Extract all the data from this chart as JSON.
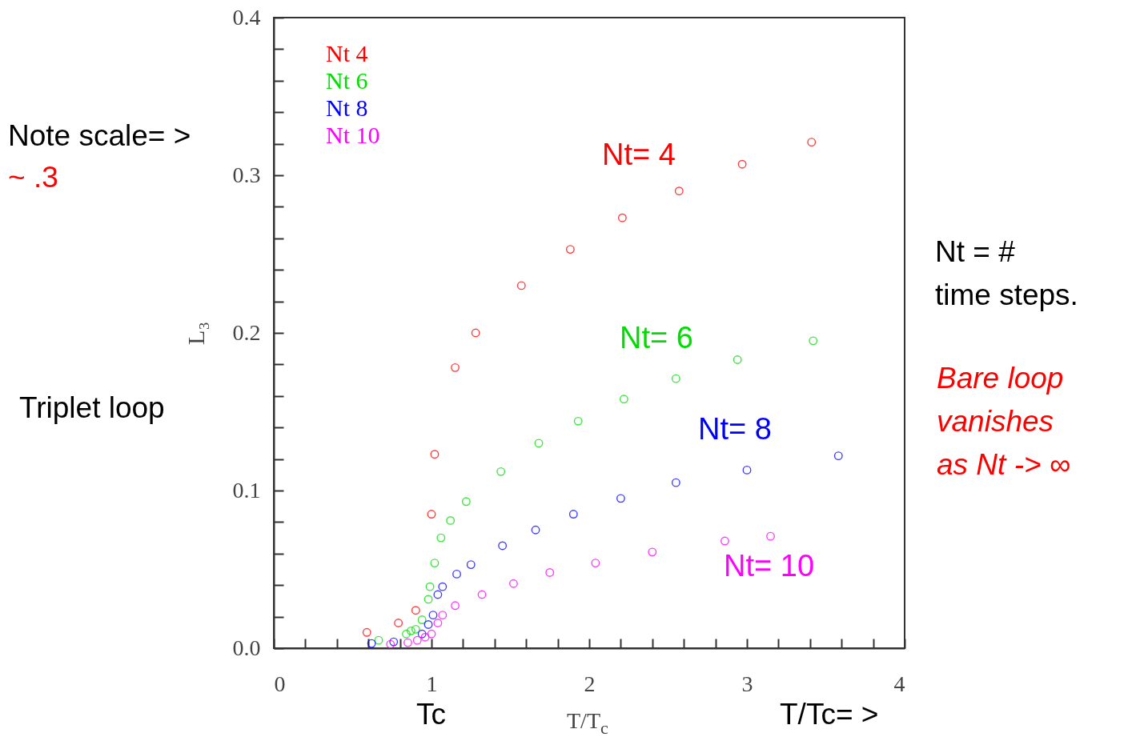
{
  "chart_data": {
    "type": "scatter",
    "xlabel": "T/T$_{c}$",
    "ylabel": "L₃",
    "xlim": [
      0,
      4
    ],
    "ylim": [
      0,
      0.4
    ],
    "xticks": [
      0,
      {
        "value": 0.2,
        "label": null
      },
      {
        "value": 0.4,
        "label": null
      },
      {
        "value": 0.6,
        "label": null
      },
      {
        "value": 0.8,
        "label": null
      },
      1,
      {
        "value": 1.2,
        "label": null
      },
      {
        "value": 1.4,
        "label": null
      },
      {
        "value": 1.6,
        "label": null
      },
      {
        "value": 1.8,
        "label": null
      },
      2,
      {
        "value": 2.2,
        "label": null
      },
      {
        "value": 2.4,
        "label": null
      },
      {
        "value": 2.6,
        "label": null
      },
      {
        "value": 2.8,
        "label": null
      },
      3,
      {
        "value": 3.2,
        "label": null
      },
      {
        "value": 3.4,
        "label": null
      },
      {
        "value": 3.6,
        "label": null
      },
      {
        "value": 3.8,
        "label": null
      },
      4
    ],
    "yticks": [
      {
        "value": 0,
        "label": "0.0"
      },
      {
        "value": 0.02,
        "label": null
      },
      {
        "value": 0.04,
        "label": null
      },
      {
        "value": 0.06,
        "label": null
      },
      {
        "value": 0.08,
        "label": null
      },
      0.1,
      {
        "value": 0.12,
        "label": null
      },
      {
        "value": 0.14,
        "label": null
      },
      {
        "value": 0.16,
        "label": null
      },
      {
        "value": 0.18,
        "label": null
      },
      0.2,
      {
        "value": 0.22,
        "label": null
      },
      {
        "value": 0.24,
        "label": null
      },
      {
        "value": 0.26,
        "label": null
      },
      {
        "value": 0.28,
        "label": null
      },
      0.3,
      {
        "value": 0.32,
        "label": null
      },
      {
        "value": 0.34,
        "label": null
      },
      {
        "value": 0.36,
        "label": null
      },
      {
        "value": 0.38,
        "label": null
      },
      0.4
    ],
    "grid": false,
    "legend": "top left",
    "marker": "circle",
    "series": [
      {
        "name": "Nt 4",
        "color": "#ff0000",
        "x": [
          0.59,
          0.79,
          0.9,
          1.0,
          1.02,
          1.15,
          1.28,
          1.57,
          1.88,
          2.21,
          2.57,
          2.97,
          3.41
        ],
        "values": [
          0.01,
          0.016,
          0.024,
          0.085,
          0.123,
          0.178,
          0.2,
          0.23,
          0.253,
          0.273,
          0.29,
          0.307,
          0.321
        ]
      },
      {
        "name": "Nt 6",
        "color": "#00dd00",
        "x": [
          0.665,
          0.84,
          0.87,
          0.9,
          0.94,
          0.98,
          0.99,
          1.02,
          1.06,
          1.12,
          1.22,
          1.44,
          1.68,
          1.93,
          2.22,
          2.55,
          2.94,
          3.42
        ],
        "values": [
          0.005,
          0.009,
          0.011,
          0.012,
          0.018,
          0.031,
          0.039,
          0.054,
          0.07,
          0.081,
          0.093,
          0.112,
          0.13,
          0.144,
          0.158,
          0.171,
          0.183,
          0.195
        ]
      },
      {
        "name": "Nt 8",
        "color": "#0000ff",
        "x": [
          0.62,
          0.76,
          0.94,
          0.98,
          1.01,
          1.04,
          1.07,
          1.16,
          1.25,
          1.45,
          1.66,
          1.9,
          2.2,
          2.55,
          3.0,
          3.58
        ],
        "values": [
          0.003,
          0.004,
          0.009,
          0.015,
          0.021,
          0.034,
          0.039,
          0.047,
          0.053,
          0.065,
          0.075,
          0.085,
          0.095,
          0.105,
          0.113,
          0.122
        ]
      },
      {
        "name": "Nt 10",
        "color": "#ff00ff",
        "x": [
          0.74,
          0.85,
          0.91,
          0.96,
          1.0,
          1.04,
          1.07,
          1.15,
          1.32,
          1.52,
          1.75,
          2.04,
          2.4,
          2.86,
          3.15
        ],
        "values": [
          0.0025,
          0.0035,
          0.005,
          0.007,
          0.009,
          0.016,
          0.021,
          0.027,
          0.034,
          0.041,
          0.048,
          0.054,
          0.061,
          0.068,
          0.071
        ]
      }
    ],
    "annotations": [
      "Nt= 4",
      "Nt= 6",
      "Nt= 8",
      "Nt= 10",
      "Note scale= >",
      "~  .3",
      "Triplet loop",
      "Nt  =  #\ntime steps.",
      "Bare loop\nvanishes\nas Nt -> ∞",
      "Tc",
      "T/Tc= >"
    ]
  }
}
